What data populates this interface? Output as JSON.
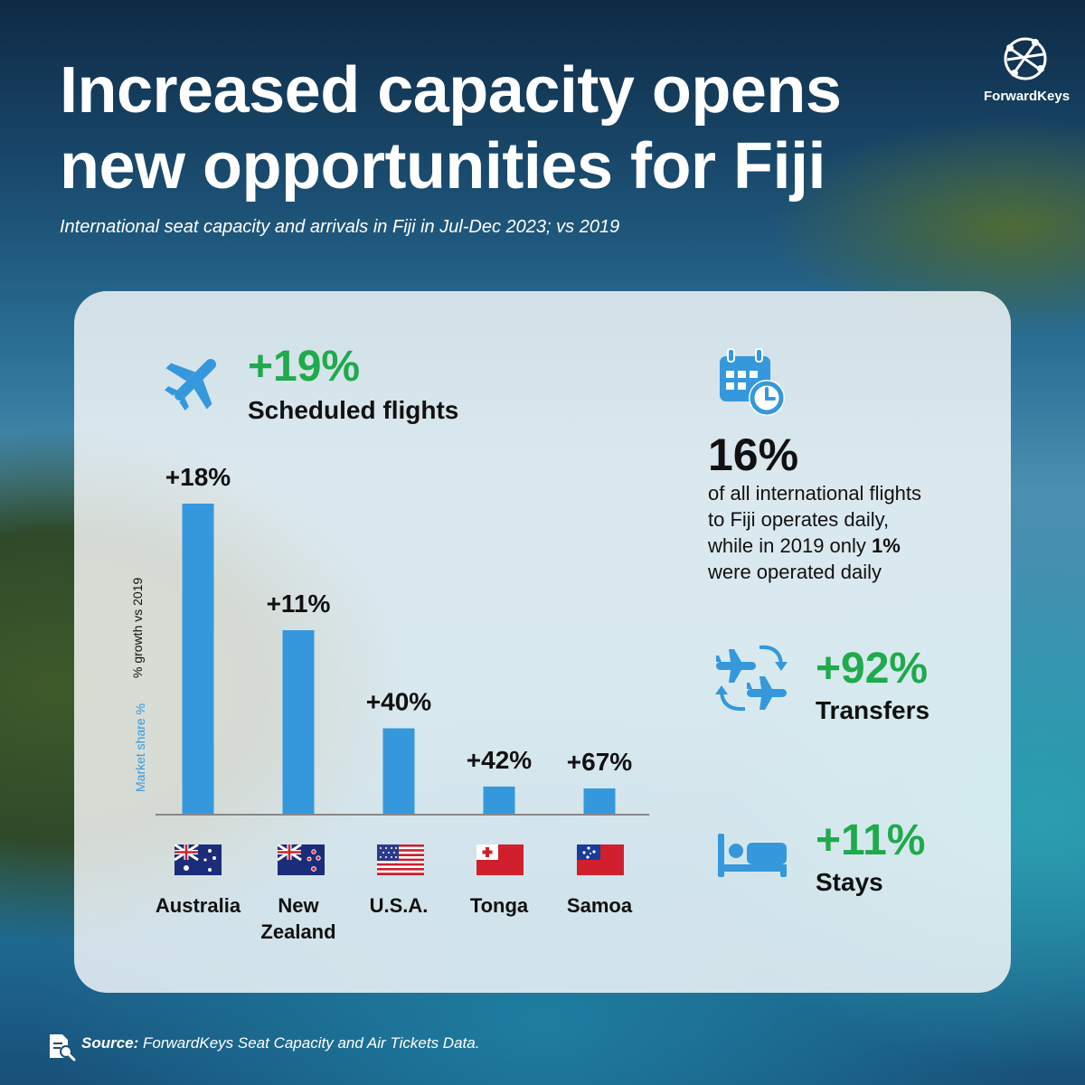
{
  "title": "Increased capacity opens new opportunities for Fiji",
  "subtitle": "International seat capacity and arrivals in Fiji in Jul-Dec 2023; vs 2019",
  "brand": "ForwardKeys",
  "flights": {
    "value": "+19%",
    "label": "Scheduled flights"
  },
  "daily": {
    "value": "16%",
    "line1": "of all international flights",
    "line2": "to Fiji operates daily,",
    "line3_pre": "while in 2019 only ",
    "line3_bold": "1%",
    "line4": "were operated daily"
  },
  "transfers": {
    "value": "+92%",
    "label": "Transfers"
  },
  "stays": {
    "value": "+11%",
    "label": "Stays"
  },
  "source": {
    "label": "Source:",
    "text": " ForwardKeys Seat Capacity and Air Tickets Data."
  },
  "colors": {
    "bar": "#3598dc",
    "green": "#1faa4b"
  },
  "chart_data": {
    "type": "bar",
    "categories": [
      "Australia",
      "New Zealand",
      "U.S.A.",
      "Tonga",
      "Samoa"
    ],
    "category_lines": [
      [
        "Australia"
      ],
      [
        "New",
        "Zealand"
      ],
      [
        "U.S.A."
      ],
      [
        "Tonga"
      ],
      [
        "Samoa"
      ]
    ],
    "series": [
      {
        "name": "Market share %",
        "values": [
          49,
          29,
          13.5,
          4.3,
          4
        ]
      }
    ],
    "growth_labels": [
      "+18%",
      "+11%",
      "+40%",
      "+42%",
      "+67%"
    ],
    "ylabel_blue": "Market share %",
    "ylabel_dark": "% growth vs 2019",
    "ylim": [
      0,
      50
    ],
    "grid": false,
    "legend": "none"
  }
}
